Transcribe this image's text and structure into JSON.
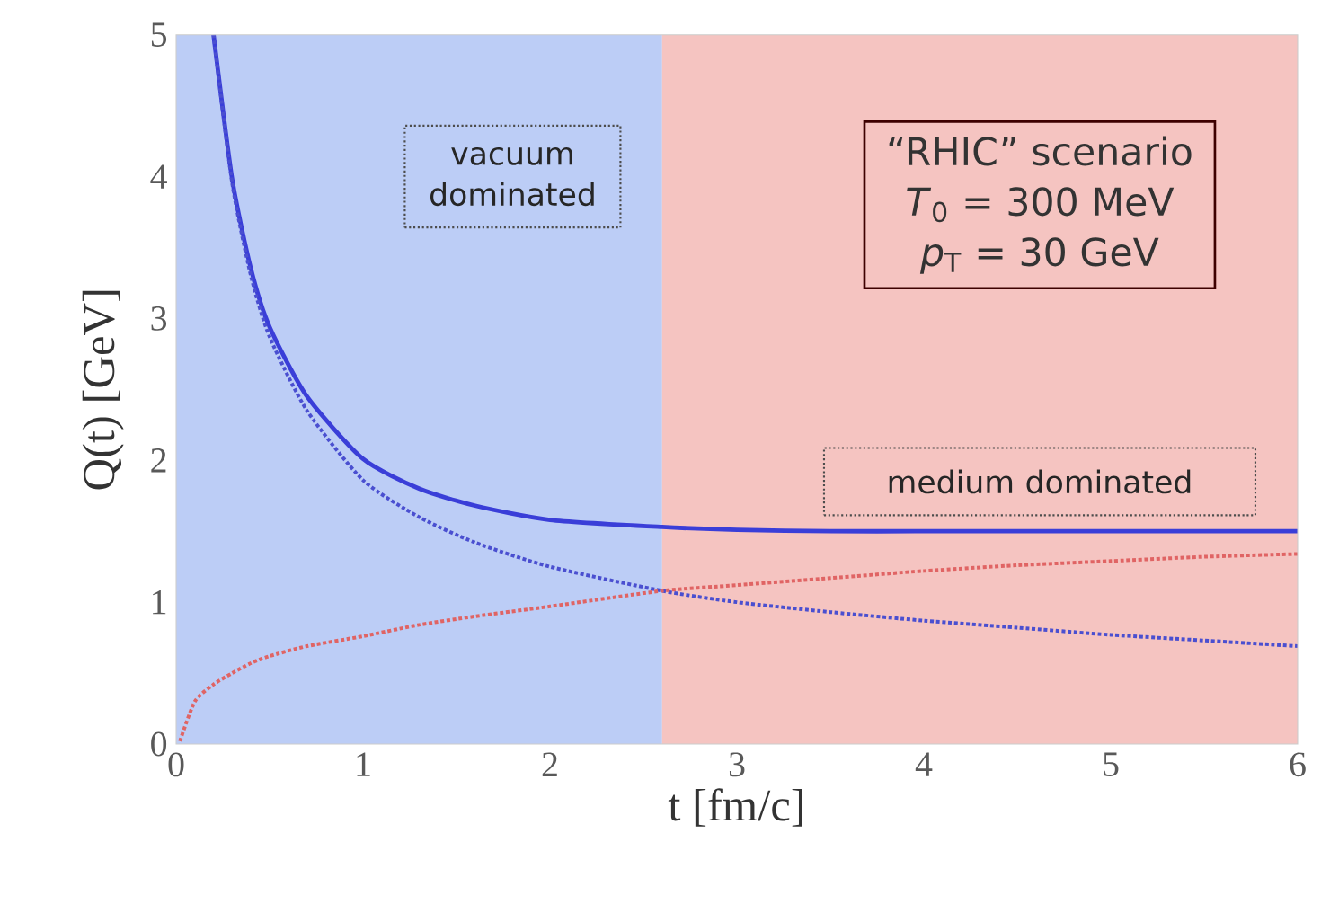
{
  "chart_data": {
    "type": "line",
    "xlabel": "t [fm/c]",
    "ylabel": "Q(t) [GeV]",
    "xlim": [
      0,
      6
    ],
    "ylim": [
      0,
      5
    ],
    "xticks": [
      0,
      1,
      2,
      3,
      4,
      5,
      6
    ],
    "yticks": [
      0,
      1,
      2,
      3,
      4,
      5
    ],
    "grid": false,
    "bands": [
      {
        "axis": "x",
        "from": 0,
        "to": 2.6,
        "label": "vacuum dominated",
        "color": "#bccdf6"
      },
      {
        "axis": "x",
        "from": 2.6,
        "to": 6,
        "label": "medium dominated",
        "color": "#f5c4c1"
      }
    ],
    "annotations": [
      "“RHIC” scenario",
      "*T*$_{0}$ = 300 MeV",
      "*p*$_{T}$ = 30 GeV"
    ],
    "series": [
      {
        "color": "#3a3ed8",
        "line_style": "solid",
        "x": [
          0.2,
          0.3,
          0.4,
          0.5,
          0.7,
          1.0,
          1.3,
          1.6,
          2.0,
          2.6,
          3.0,
          3.5,
          4.0,
          4.5,
          5.0,
          5.5,
          6.0
        ],
        "values": [
          5.0,
          3.98,
          3.35,
          2.94,
          2.45,
          2.01,
          1.8,
          1.68,
          1.58,
          1.53,
          1.51,
          1.5,
          1.5,
          1.5,
          1.5,
          1.5,
          1.5
        ]
      },
      {
        "color": "#4a4fd0",
        "line_style": "dotted",
        "x": [
          0.2,
          0.3,
          0.4,
          0.5,
          0.7,
          1.0,
          1.3,
          1.6,
          2.0,
          2.6,
          3.0,
          3.5,
          4.0,
          4.5,
          5.0,
          5.5,
          6.0
        ],
        "values": [
          5.0,
          3.95,
          3.3,
          2.87,
          2.35,
          1.86,
          1.6,
          1.42,
          1.25,
          1.08,
          1.0,
          0.93,
          0.87,
          0.82,
          0.77,
          0.73,
          0.69
        ]
      },
      {
        "color": "#e06464",
        "line_style": "dotted",
        "x": [
          0.02,
          0.1,
          0.2,
          0.3,
          0.4,
          0.5,
          0.7,
          1.0,
          1.3,
          1.6,
          2.0,
          2.6,
          3.0,
          3.5,
          4.0,
          4.5,
          5.0,
          5.5,
          6.0
        ],
        "values": [
          0.02,
          0.3,
          0.42,
          0.5,
          0.57,
          0.62,
          0.69,
          0.76,
          0.84,
          0.9,
          0.97,
          1.08,
          1.12,
          1.17,
          1.22,
          1.26,
          1.29,
          1.32,
          1.34
        ]
      }
    ]
  }
}
